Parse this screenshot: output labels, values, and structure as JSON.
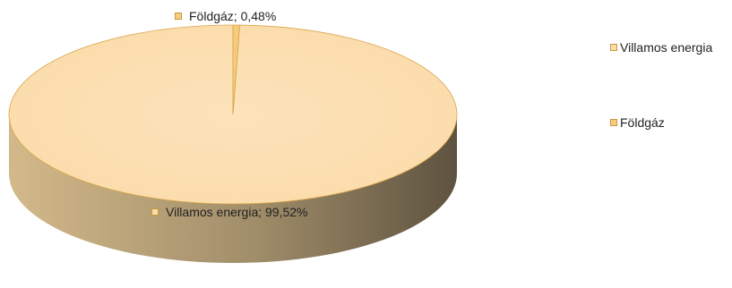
{
  "chart_data": {
    "type": "pie",
    "title": "",
    "categories": [
      "Villamos energia",
      "Földgáz"
    ],
    "values": [
      99.52,
      0.48
    ],
    "unit": "%",
    "data_labels": [
      "Villamos energia; 99,52%",
      "Földgáz; 0,48%"
    ],
    "colors": [
      "#fbdcaa",
      "#f6cb7d"
    ],
    "side_colors": [
      "#d3b98a",
      "#5e5340"
    ],
    "edge_color": "#d9a54a",
    "legend_position": "right",
    "style": "3d"
  }
}
